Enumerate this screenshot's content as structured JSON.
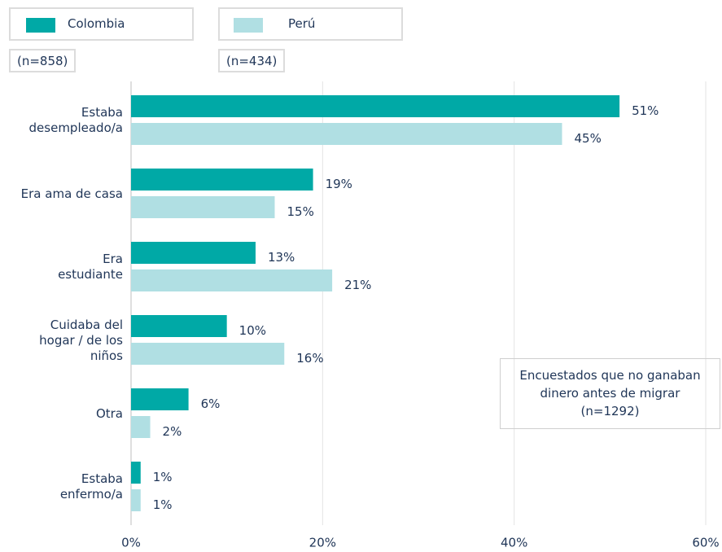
{
  "chart_data": {
    "type": "bar",
    "orientation": "horizontal",
    "categories": [
      "Estaba\ndesempleado/a",
      "Era ama de casa",
      "Era\nestudiante",
      "Cuidaba del\nhogar / de los\nniños",
      "Otra",
      "Estaba\nenfermo/a"
    ],
    "series": [
      {
        "name": "Colombia",
        "n_label": "(n=858)",
        "color": "#00a9a6",
        "values": [
          51,
          19,
          13,
          10,
          6,
          1
        ],
        "value_labels": [
          "51%",
          "19%",
          "13%",
          "10%",
          "6%",
          "1%"
        ]
      },
      {
        "name": "Perú",
        "n_label": "(n=434)",
        "color": "#b0dfe3",
        "values": [
          45,
          15,
          21,
          16,
          2,
          1
        ],
        "value_labels": [
          "45%",
          "15%",
          "21%",
          "16%",
          "2%",
          "1%"
        ]
      }
    ],
    "xlim": [
      0,
      60
    ],
    "xticks": [
      {
        "value": 0,
        "label": "0%"
      },
      {
        "value": 20,
        "label": "20%"
      },
      {
        "value": 40,
        "label": "40%"
      },
      {
        "value": 60,
        "label": "60%"
      }
    ],
    "grid": true,
    "note": "Encuestados que no ganaban dinero antes de migrar (n=1292)"
  }
}
